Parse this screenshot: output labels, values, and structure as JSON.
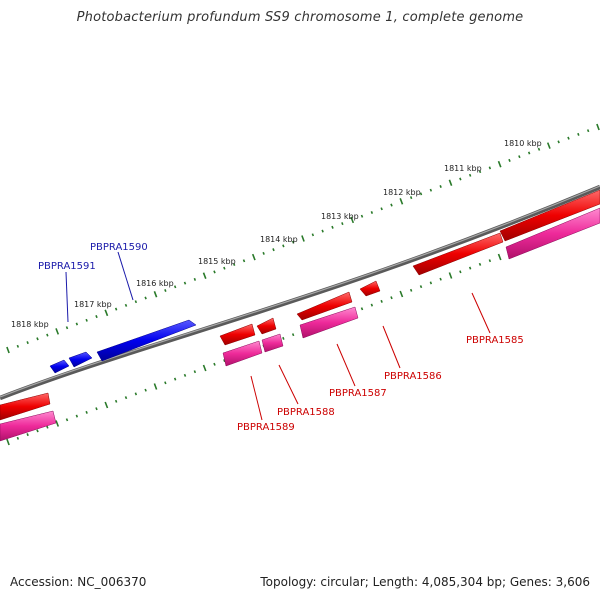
{
  "title": "Photobacterium profundum SS9 chromosome 1, complete genome",
  "footer": {
    "accession": "Accession: NC_006370",
    "topology": "Topology: circular; Length: 4,085,304 bp; Genes: 3,606"
  },
  "colors": {
    "backbone": "#7a7a7a",
    "ticks": "#2a7a2a",
    "plus_strand": "#0000ee",
    "minus_strand": "#ee0000",
    "cds": "#ee2a9a",
    "plus_label": "#1a1aaa",
    "minus_label": "#cc0000"
  },
  "kbp_labels": [
    "1818 kbp",
    "1817 kbp",
    "1816 kbp",
    "1815 kbp",
    "1814 kbp",
    "1813 kbp",
    "1812 kbp",
    "1811 kbp",
    "1810 kbp"
  ],
  "genes": [
    {
      "name": "PBPRA1591",
      "strand": "+"
    },
    {
      "name": "PBPRA1590",
      "strand": "+"
    },
    {
      "name": "PBPRA1589",
      "strand": "-"
    },
    {
      "name": "PBPRA1588",
      "strand": "-"
    },
    {
      "name": "PBPRA1587",
      "strand": "-"
    },
    {
      "name": "PBPRA1586",
      "strand": "-"
    },
    {
      "name": "PBPRA1585",
      "strand": "-"
    }
  ]
}
